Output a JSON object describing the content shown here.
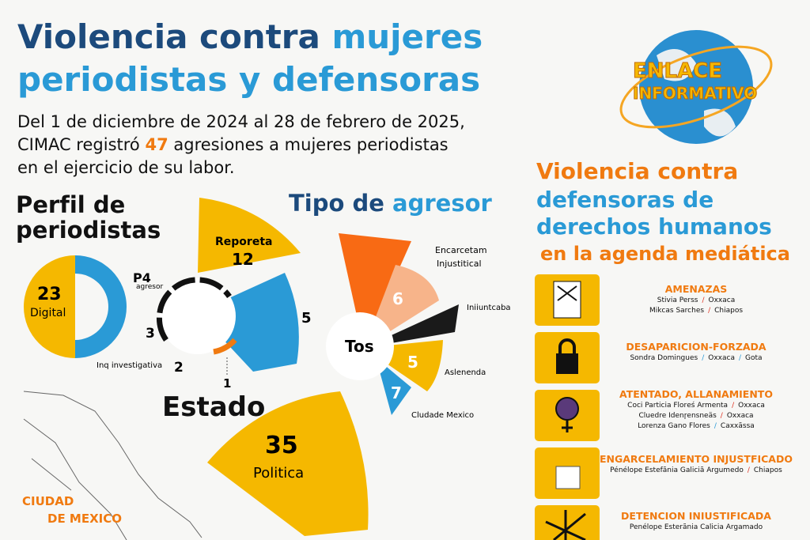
{
  "header": {
    "title_a": "Violencia contra",
    "title_b": "mujeres",
    "title_line2": "periodistas y defensoras",
    "intro_1": "Del 1 de diciembre de 2024 al 28 de febrero de 2025,",
    "intro_2a": "CIMAC registró",
    "intro_2b": "47",
    "intro_2c": "agresiones a mujeres periodistas",
    "intro_3": "en el ejercicio de su labor."
  },
  "logo": {
    "line1": "ENLACE",
    "line2": "INFORMATIVO"
  },
  "perfil": {
    "title_1": "Perfil de",
    "title_2": "periodistas",
    "digital_value": "23",
    "digital_label": "Digital",
    "p4": "P4",
    "agresor": "agresor",
    "reporeta_label": "Reporeta",
    "reporeta_value": "12",
    "v5": "5",
    "v3": "3",
    "v2": "2",
    "v1": "1",
    "investigativa": "Inq investigativa"
  },
  "tipo": {
    "title_a": "Tipo de",
    "title_b": "agresor",
    "label_1": "Encarcetam",
    "label_1b": "Injustitical",
    "v6": "6",
    "label_2": "Iniiuntcaba",
    "v5": "5",
    "label_3": "Aslenenda",
    "v7": "7",
    "label_4": "Cludade Mexico",
    "center": "Tos"
  },
  "estado": {
    "title": "Estado",
    "value": "35",
    "label": "Politica",
    "map_label_1": "CIUDAD",
    "map_label_2": "DE MEXICO"
  },
  "defensoras": {
    "title_1": "Violencia contra",
    "title_2": "defensoras de",
    "title_3": "derechos humanos",
    "title_4": "en la agenda mediática",
    "items": [
      {
        "title": "AMENAZAS",
        "lines": [
          [
            "Stivia Perss",
            "Oxxaca"
          ],
          [
            "Mikcas Sarches",
            "Chiapos"
          ]
        ]
      },
      {
        "title": "DESAPARICION-FORZADA",
        "lines": [
          [
            "Sondra Domingues",
            "Oxxaca",
            "Gota"
          ]
        ]
      },
      {
        "title": "ATENTADO, ALLANAMIENTO",
        "lines": [
          [
            "Coci Particia Florеś Armenta",
            "Oxxaca"
          ],
          [
            "Cluedre Idenɼensneäs",
            "Oxxaca"
          ],
          [
            "Lorenza Gano Flores",
            "Caxxãssa"
          ]
        ]
      },
      {
        "title": "ENGARCELAMIENTO INJUSTFICADO",
        "lines": [
          [
            "Pénélope Estefãnia Galiciã Argumedo",
            "Chiapos"
          ]
        ]
      },
      {
        "title": "DETENCION INIUSTIFICADA",
        "lines": [
          [
            "Penélope Esterãnia Calicia Argamado"
          ]
        ]
      }
    ]
  }
}
